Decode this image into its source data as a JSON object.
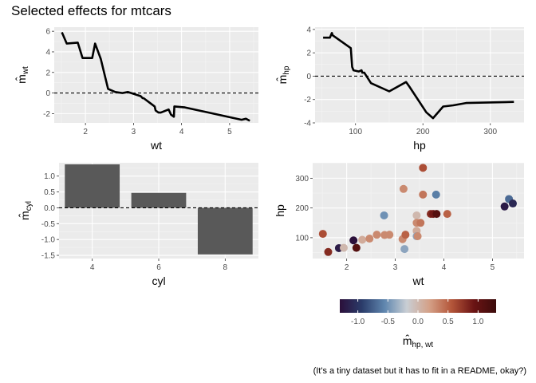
{
  "title": "Selected effects for mtcars",
  "caption": "(It's a tiny dataset but it has to fit in a README, okay?)",
  "colors": {
    "panel_bg": "#ebebeb",
    "grid_major": "#ffffff",
    "line": "#000000",
    "bar": "#595959",
    "colorscale": [
      "#2b0f3a",
      "#2b3d6b",
      "#5f86ae",
      "#c9ced4",
      "#d4a188",
      "#b4563a",
      "#6b1414",
      "#3b0b0b"
    ]
  },
  "chart_data": [
    {
      "id": "wt",
      "type": "line",
      "xlabel": "wt",
      "ylabel": "m̂_wt",
      "ylabel_main": "m",
      "ylabel_sub": "wt",
      "xlim": [
        1.35,
        5.6
      ],
      "ylim": [
        -2.9,
        6.4
      ],
      "xticks": [
        2,
        3,
        4,
        5
      ],
      "yticks": [
        -2,
        0,
        2,
        4,
        6
      ],
      "reference_line": 0,
      "x": [
        1.51,
        1.61,
        1.84,
        1.94,
        2.14,
        2.2,
        2.32,
        2.47,
        2.62,
        2.77,
        2.88,
        3.15,
        3.17,
        3.19,
        3.21,
        3.44,
        3.46,
        3.52,
        3.57,
        3.73,
        3.78,
        3.84,
        3.85,
        4.07,
        5.25,
        5.34,
        5.42
      ],
      "y": [
        5.9,
        4.8,
        4.9,
        3.4,
        3.4,
        4.8,
        3.3,
        0.4,
        0.1,
        0.0,
        0.1,
        -0.3,
        -0.4,
        -0.5,
        -0.5,
        -1.3,
        -1.7,
        -1.9,
        -1.9,
        -1.6,
        -2.1,
        -2.3,
        -1.3,
        -1.4,
        -2.6,
        -2.5,
        -2.7
      ]
    },
    {
      "id": "hp",
      "type": "line",
      "xlabel": "hp",
      "ylabel": "m̂_hp",
      "ylabel_main": "m",
      "ylabel_sub": "hp",
      "xlim": [
        40,
        350
      ],
      "ylim": [
        -4.0,
        4.2
      ],
      "xticks": [
        100,
        200,
        300
      ],
      "yticks": [
        -4,
        -2,
        0,
        2,
        4
      ],
      "reference_line": 0,
      "x": [
        52,
        62,
        65,
        66,
        93,
        95,
        97,
        105,
        109,
        110,
        113,
        123,
        150,
        175,
        180,
        205,
        215,
        230,
        245,
        264,
        335
      ],
      "y": [
        3.3,
        3.3,
        3.7,
        3.5,
        2.4,
        0.8,
        0.5,
        0.4,
        0.5,
        0.3,
        0.3,
        -0.6,
        -1.3,
        -0.5,
        -0.9,
        -3.1,
        -3.6,
        -2.6,
        -2.5,
        -2.3,
        -2.2
      ]
    },
    {
      "id": "cyl",
      "type": "bar",
      "xlabel": "cyl",
      "ylabel": "m̂_cyl",
      "ylabel_main": "m",
      "ylabel_sub": "cyl",
      "xlim": [
        3,
        9
      ],
      "ylim": [
        -1.6,
        1.42
      ],
      "xticks": [
        4,
        6,
        8
      ],
      "yticks": [
        -1.5,
        -1.0,
        -0.5,
        0.0,
        0.5,
        1.0
      ],
      "ytick_labels": [
        "-1.5",
        "-1.0",
        "-0.5",
        "0.0",
        "0.5",
        "1.0"
      ],
      "reference_line": 0,
      "categories": [
        4,
        6,
        8
      ],
      "values": [
        1.37,
        0.47,
        -1.47
      ]
    },
    {
      "id": "interaction",
      "type": "scatter",
      "xlabel": "wt",
      "ylabel": "hp",
      "xlim": [
        1.3,
        5.65
      ],
      "ylim": [
        30,
        352
      ],
      "xticks": [
        2,
        3,
        4,
        5
      ],
      "yticks": [
        100,
        200,
        300
      ],
      "legend": {
        "title_main": "m",
        "title_sub": "hp, wt",
        "placement": "bottom",
        "range": [
          -1.3,
          1.3
        ],
        "ticks": [
          -1.0,
          -0.5,
          0.0,
          0.5,
          1.0
        ],
        "tick_labels": [
          "-1.0",
          "-0.5",
          "0.0",
          "0.5",
          "1.0"
        ]
      },
      "points": [
        {
          "x": 1.51,
          "y": 113,
          "v": 0.6
        },
        {
          "x": 1.62,
          "y": 52,
          "v": 0.8
        },
        {
          "x": 1.84,
          "y": 65,
          "v": -1.2
        },
        {
          "x": 1.94,
          "y": 66,
          "v": 0.0
        },
        {
          "x": 2.14,
          "y": 91,
          "v": -1.3
        },
        {
          "x": 2.2,
          "y": 66,
          "v": 1.1
        },
        {
          "x": 2.32,
          "y": 93,
          "v": 0.1
        },
        {
          "x": 2.47,
          "y": 97,
          "v": 0.3
        },
        {
          "x": 2.62,
          "y": 110,
          "v": 0.3
        },
        {
          "x": 2.77,
          "y": 175,
          "v": -0.5
        },
        {
          "x": 2.78,
          "y": 109,
          "v": 0.3
        },
        {
          "x": 2.88,
          "y": 110,
          "v": 0.3
        },
        {
          "x": 3.15,
          "y": 95,
          "v": 0.3
        },
        {
          "x": 3.17,
          "y": 264,
          "v": 0.3
        },
        {
          "x": 3.19,
          "y": 62,
          "v": -0.4
        },
        {
          "x": 3.21,
          "y": 110,
          "v": 0.5
        },
        {
          "x": 3.44,
          "y": 175,
          "v": 0.0
        },
        {
          "x": 3.44,
          "y": 150,
          "v": 0.3
        },
        {
          "x": 3.44,
          "y": 123,
          "v": 0.1
        },
        {
          "x": 3.44,
          "y": 105,
          "v": -0.4
        },
        {
          "x": 3.46,
          "y": 105,
          "v": 0.3
        },
        {
          "x": 3.52,
          "y": 150,
          "v": 0.4
        },
        {
          "x": 3.57,
          "y": 245,
          "v": 0.4
        },
        {
          "x": 3.57,
          "y": 335,
          "v": 0.6
        },
        {
          "x": 3.73,
          "y": 180,
          "v": 0.8
        },
        {
          "x": 3.78,
          "y": 180,
          "v": 0.9
        },
        {
          "x": 3.84,
          "y": 245,
          "v": -0.6
        },
        {
          "x": 3.85,
          "y": 180,
          "v": 1.1
        },
        {
          "x": 4.07,
          "y": 180,
          "v": 0.5
        },
        {
          "x": 5.25,
          "y": 205,
          "v": -1.2
        },
        {
          "x": 5.34,
          "y": 230,
          "v": -0.7
        },
        {
          "x": 5.42,
          "y": 215,
          "v": -1.1
        }
      ]
    }
  ]
}
